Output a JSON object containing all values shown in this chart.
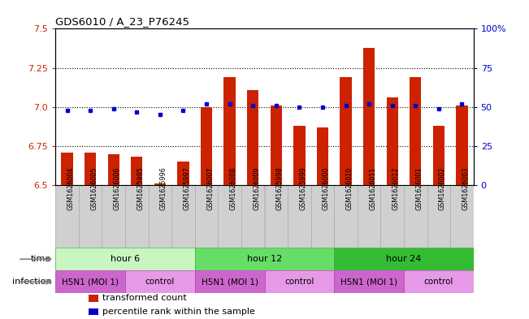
{
  "title": "GDS6010 / A_23_P76245",
  "samples": [
    "GSM1626004",
    "GSM1626005",
    "GSM1626006",
    "GSM1625995",
    "GSM1625996",
    "GSM1625997",
    "GSM1626007",
    "GSM1626008",
    "GSM1626009",
    "GSM1625998",
    "GSM1625999",
    "GSM1626000",
    "GSM1626010",
    "GSM1626011",
    "GSM1626012",
    "GSM1626001",
    "GSM1626002",
    "GSM1626003"
  ],
  "red_values": [
    6.71,
    6.71,
    6.7,
    6.68,
    6.51,
    6.65,
    7.0,
    7.19,
    7.11,
    7.01,
    6.88,
    6.87,
    7.19,
    7.38,
    7.06,
    7.19,
    6.88,
    7.01
  ],
  "blue_values": [
    48,
    48,
    49,
    47,
    45,
    48,
    52,
    52,
    51,
    51,
    50,
    50,
    51,
    52,
    51,
    51,
    49,
    52
  ],
  "ylim_left": [
    6.5,
    7.5
  ],
  "ylim_right": [
    0,
    100
  ],
  "yticks_left": [
    6.5,
    6.75,
    7.0,
    7.25,
    7.5
  ],
  "yticks_right": [
    0,
    25,
    50,
    75,
    100
  ],
  "ytick_labels_right": [
    "0",
    "25",
    "50",
    "75",
    "100%"
  ],
  "hlines": [
    6.75,
    7.0,
    7.25
  ],
  "time_groups": [
    {
      "label": "hour 6",
      "start": 0,
      "end": 6,
      "color": "#c8f5c0"
    },
    {
      "label": "hour 12",
      "start": 6,
      "end": 12,
      "color": "#66dd66"
    },
    {
      "label": "hour 24",
      "start": 12,
      "end": 18,
      "color": "#33bb33"
    }
  ],
  "infection_groups": [
    {
      "label": "H5N1 (MOI 1)",
      "start": 0,
      "end": 3,
      "color": "#cc66cc"
    },
    {
      "label": "control",
      "start": 3,
      "end": 6,
      "color": "#e699e6"
    },
    {
      "label": "H5N1 (MOI 1)",
      "start": 6,
      "end": 9,
      "color": "#cc66cc"
    },
    {
      "label": "control",
      "start": 9,
      "end": 12,
      "color": "#e699e6"
    },
    {
      "label": "H5N1 (MOI 1)",
      "start": 12,
      "end": 15,
      "color": "#cc66cc"
    },
    {
      "label": "control",
      "start": 15,
      "end": 18,
      "color": "#e699e6"
    }
  ],
  "bar_color": "#cc2200",
  "dot_color": "#0000cc",
  "background_color": "#ffffff",
  "label_bg_color": "#d0d0d0",
  "legend_items": [
    {
      "color": "#cc2200",
      "label": "transformed count"
    },
    {
      "color": "#0000cc",
      "label": "percentile rank within the sample"
    }
  ]
}
